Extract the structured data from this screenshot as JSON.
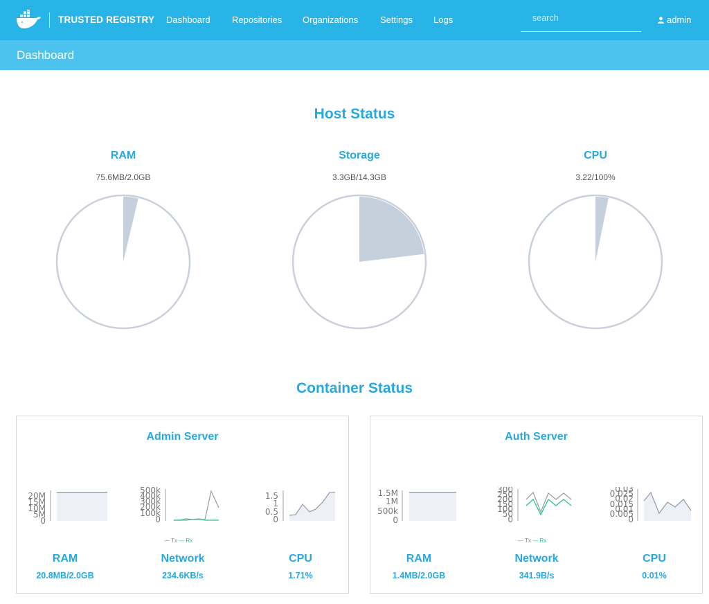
{
  "header": {
    "brand": "TRUSTED REGISTRY",
    "nav": [
      "Dashboard",
      "Repositories",
      "Organizations",
      "Settings",
      "Logs"
    ],
    "search_placeholder": "search",
    "user": "admin",
    "logo_icon": "docker-whale-icon",
    "user_icon": "user-icon"
  },
  "page": {
    "title": "Dashboard"
  },
  "host_status": {
    "title": "Host Status",
    "items": [
      {
        "label": "RAM",
        "value": "75.6MB/2.0GB",
        "fraction": 0.037
      },
      {
        "label": "Storage",
        "value": "3.3GB/14.3GB",
        "fraction": 0.231
      },
      {
        "label": "CPU",
        "value": "3.22/100%",
        "fraction": 0.032
      }
    ]
  },
  "container_status": {
    "title": "Container Status",
    "servers": [
      {
        "name": "Admin Server",
        "ram": {
          "label": "RAM",
          "value": "20.8MB/2.0GB",
          "ticks": [
            "20M",
            "15M",
            "10M",
            "5M",
            "0"
          ]
        },
        "network": {
          "label": "Network",
          "value": "234.6KB/s",
          "ticks": [
            "500k",
            "400k",
            "300k",
            "200k",
            "100k",
            "0"
          ]
        },
        "cpu": {
          "label": "CPU",
          "value": "1.71%",
          "ticks": [
            "1.5",
            "1",
            "0.5",
            "0"
          ]
        },
        "legend": {
          "tx": "Tx",
          "rx": "Rx"
        }
      },
      {
        "name": "Auth Server",
        "ram": {
          "label": "RAM",
          "value": "1.4MB/2.0GB",
          "ticks": [
            "1.5M",
            "1M",
            "500k",
            "0"
          ]
        },
        "network": {
          "label": "Network",
          "value": "341.9B/s",
          "ticks": [
            "300",
            "250",
            "200",
            "150",
            "100",
            "50",
            "0"
          ]
        },
        "cpu": {
          "label": "CPU",
          "value": "0.01%",
          "ticks": [
            "0.03",
            "0.025",
            "0.02",
            "0.015",
            "0.01",
            "0.005",
            "0"
          ]
        },
        "legend": {
          "tx": "Tx",
          "rx": "Rx"
        }
      }
    ]
  },
  "colors": {
    "topbar": "#29b4e8",
    "subbar": "#4bc3ee",
    "accent": "#29a8e0",
    "pie_outline": "#c9d0db",
    "pie_fill": "#c6cfdc",
    "rx_line": "#2cc38a",
    "tx_line": "#9aa0a8"
  }
}
